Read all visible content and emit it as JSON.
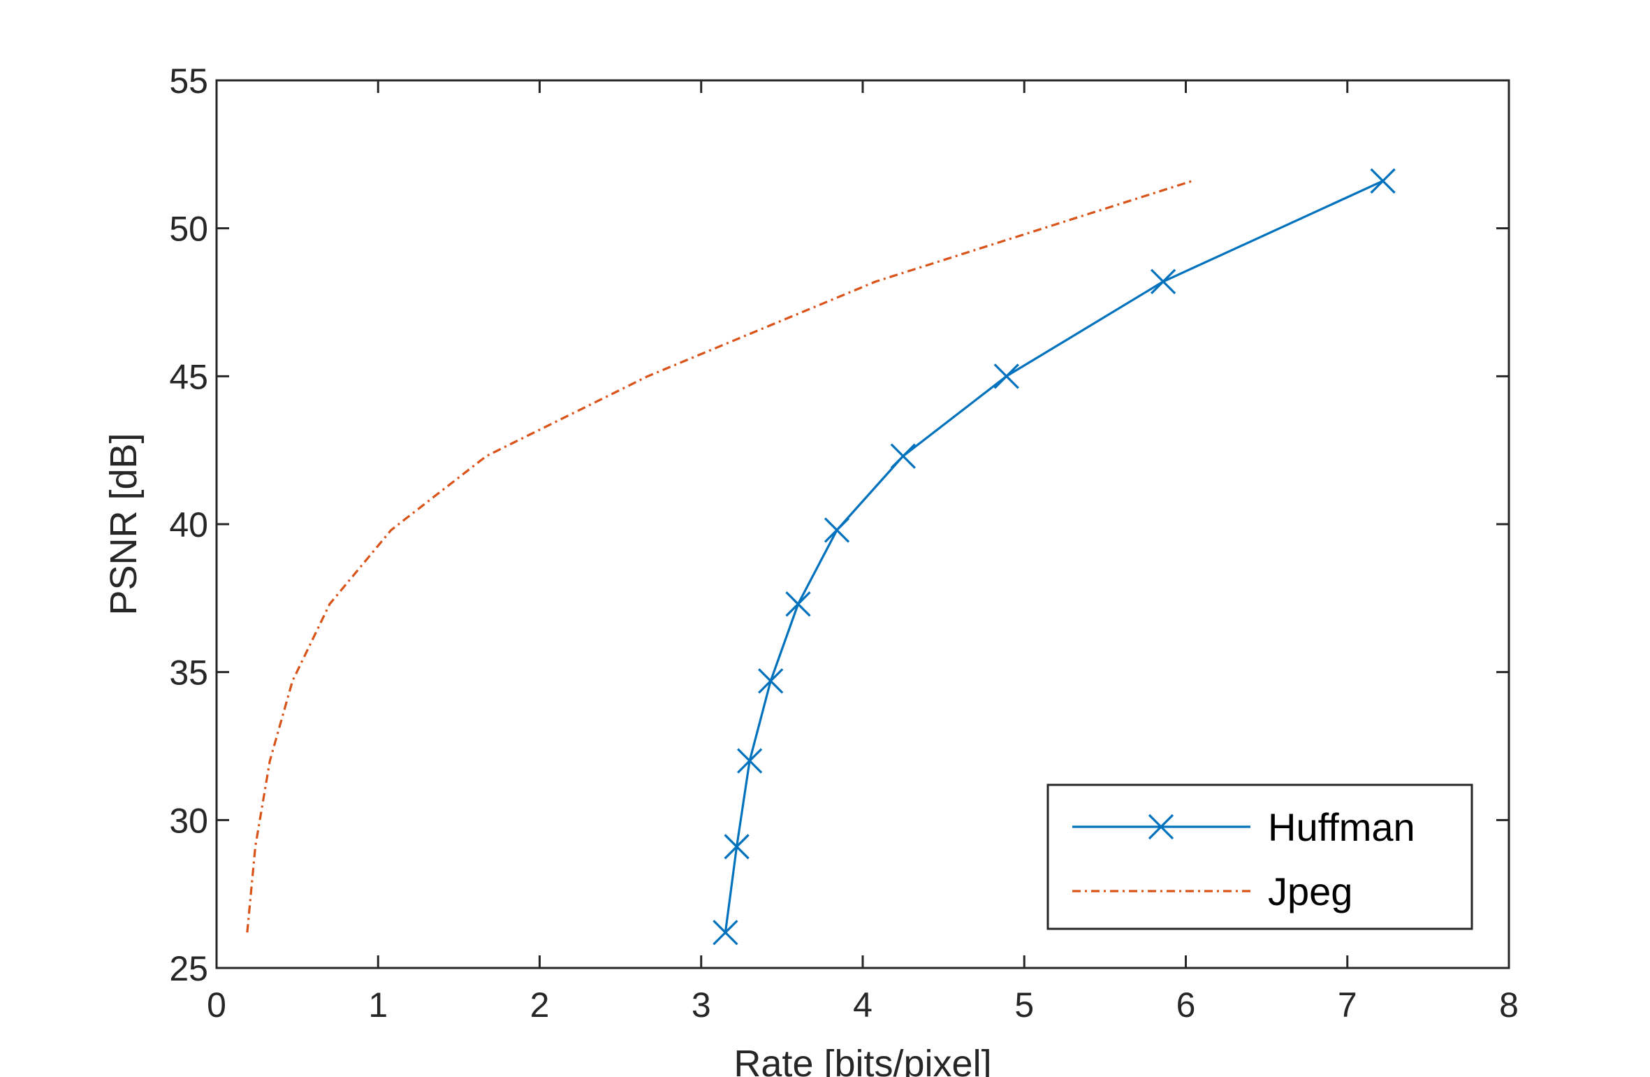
{
  "chart_data": {
    "type": "line",
    "title": "",
    "xlabel": "Rate [bits/pixel]",
    "ylabel": "PSNR [dB]",
    "xlim": [
      0,
      8
    ],
    "ylim": [
      25,
      55
    ],
    "xticks": [
      0,
      1,
      2,
      3,
      4,
      5,
      6,
      7,
      8
    ],
    "yticks": [
      25,
      30,
      35,
      40,
      45,
      50,
      55
    ],
    "grid": false,
    "legend_position": "bottom-right",
    "series": [
      {
        "name": "Huffman",
        "color": "#0072BD",
        "line_style": "solid",
        "marker": "x",
        "x": [
          3.15,
          3.22,
          3.3,
          3.43,
          3.6,
          3.84,
          4.25,
          4.89,
          5.86,
          7.22
        ],
        "y": [
          26.2,
          29.1,
          32.0,
          34.7,
          37.3,
          39.8,
          42.3,
          45.0,
          48.2,
          51.6
        ]
      },
      {
        "name": "Jpeg",
        "color": "#D95319",
        "line_style": "dash-dot",
        "marker": "none",
        "x": [
          0.19,
          0.24,
          0.33,
          0.47,
          0.7,
          1.08,
          1.67,
          2.67,
          4.08,
          6.04
        ],
        "y": [
          26.2,
          29.1,
          32.0,
          34.7,
          37.3,
          39.8,
          42.3,
          45.0,
          48.2,
          51.6
        ]
      }
    ]
  }
}
